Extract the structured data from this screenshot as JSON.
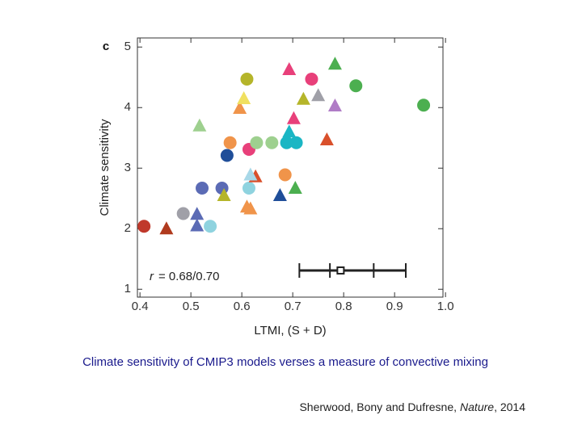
{
  "chart_data": {
    "type": "scatter",
    "panel_label": "c",
    "xlabel": "LTMI, (S + D)",
    "ylabel": "Climate sensitivity",
    "annotation_var": "r",
    "annotation": "= 0.68/0.70",
    "xlim": [
      0.395,
      0.995
    ],
    "ylim": [
      0.87,
      5.15
    ],
    "xticks": [
      0.4,
      0.5,
      0.6,
      0.7,
      0.8,
      0.9,
      {
        "value": 1,
        "label": "1.0"
      }
    ],
    "yticks": [
      1,
      2,
      3,
      4,
      5
    ],
    "series": [
      {
        "marker": "circle",
        "x": [
          0.408,
          0.485,
          0.538,
          0.522,
          0.561,
          0.571,
          0.577,
          0.614,
          0.629,
          0.659,
          0.614,
          0.685,
          0.61,
          0.737,
          0.824,
          0.957,
          0.688,
          0.707
        ],
        "values": [
          2.04,
          2.25,
          2.04,
          2.67,
          2.67,
          3.21,
          3.42,
          3.31,
          3.42,
          3.42,
          2.67,
          2.89,
          4.47,
          4.47,
          4.36,
          4.04,
          3.42,
          3.42
        ],
        "colors": [
          "#c0392b",
          "#a0a0a8",
          "#8fd3df",
          "#5b6bb5",
          "#5b6bb5",
          "#1f4e99",
          "#f0944a",
          "#e8407a",
          "#9ed08f",
          "#9ed08f",
          "#8fd3df",
          "#f0944a",
          "#b5b52a",
          "#e8407a",
          "#4caf50",
          "#4caf50",
          "#1ab6c4",
          "#1ab6c4"
        ]
      },
      {
        "marker": "triangle",
        "x": [
          0.452,
          0.512,
          0.512,
          0.565,
          0.61,
          0.617,
          0.627,
          0.617,
          0.517,
          0.596,
          0.604,
          0.693,
          0.783,
          0.721,
          0.75,
          0.783,
          0.702,
          0.693,
          0.691,
          0.767,
          0.675,
          0.705
        ],
        "values": [
          2.0,
          2.24,
          2.05,
          2.55,
          2.36,
          2.33,
          2.86,
          2.89,
          3.7,
          3.99,
          4.15,
          4.63,
          4.72,
          4.14,
          4.2,
          4.03,
          3.82,
          3.6,
          3.46,
          3.47,
          2.55,
          2.67
        ],
        "colors": [
          "#b03a1e",
          "#5b6bb5",
          "#5b6bb5",
          "#b5b52a",
          "#f0944a",
          "#f0944a",
          "#d9502b",
          "#a8d8e8",
          "#9ed08f",
          "#f0944a",
          "#f0e060",
          "#e8407a",
          "#4caf50",
          "#b5b52a",
          "#a0a0a8",
          "#b07cc6",
          "#e8407a",
          "#1ab6c4",
          "#1ab6c4",
          "#d9502b",
          "#1f4e99",
          "#4caf50"
        ]
      }
    ],
    "error_bar": {
      "x": 0.794,
      "y": 1.31,
      "inner": [
        0.773,
        0.859
      ],
      "outer": [
        0.713,
        0.922
      ]
    }
  },
  "caption": "Climate sensitivity of CMIP3 models verses a measure of convective mixing",
  "citation": {
    "authors": "Sherwood, Bony and Dufresne,",
    "journal": "Nature",
    "year": ", 2014"
  }
}
